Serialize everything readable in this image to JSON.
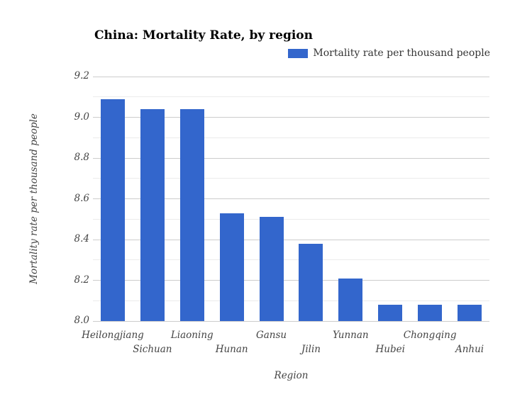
{
  "title": "China: Mortality Rate, by region",
  "legend": {
    "label": "Mortality rate per thousand people"
  },
  "colors": {
    "bar": "#3366cc",
    "grid_major": "#cccccc",
    "grid_minor": "#ebebeb",
    "baseline": "#cccccc",
    "title_text": "#000000",
    "axis_text": "#444444",
    "legend_text": "#333333"
  },
  "chart_data": {
    "type": "bar",
    "title": "China: Mortality Rate, by region",
    "categories": [
      "Heilongjiang",
      "Sichuan",
      "Liaoning",
      "Hunan",
      "Gansu",
      "Jilin",
      "Yunnan",
      "Hubei",
      "Chongqing",
      "Anhui"
    ],
    "values": [
      9.09,
      9.04,
      9.04,
      8.53,
      8.51,
      8.38,
      8.21,
      8.08,
      8.08,
      8.08
    ],
    "series_name": "Mortality rate per thousand people",
    "xlabel": "Region",
    "ylabel": "Mortality rate per thousand people",
    "ylim": [
      8.0,
      9.2
    ],
    "ytick_labels": [
      "8.0",
      "8.2",
      "8.4",
      "8.6",
      "8.8",
      "9.0",
      "9.2"
    ],
    "ytick_step": 0.2,
    "minor_grid_step": 0.1,
    "grid": "on",
    "legend_position": "top-right",
    "x_labels_staggered": true
  }
}
